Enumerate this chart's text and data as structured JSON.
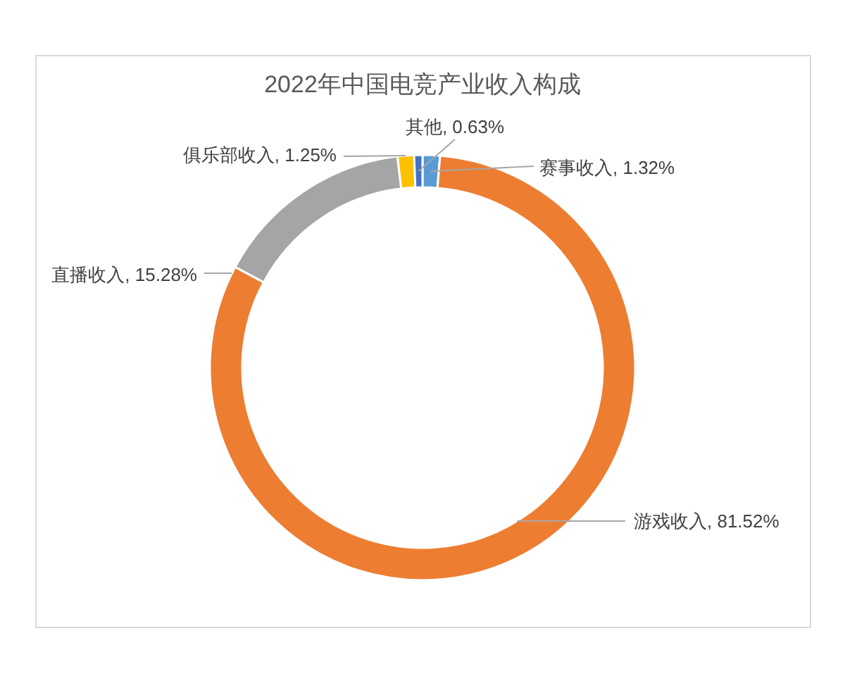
{
  "chart_data": {
    "type": "donut",
    "title": "2022年中国电竞产业收入构成",
    "categories": [
      "赛事收入",
      "游戏收入",
      "直播收入",
      "俱乐部收入",
      "其他"
    ],
    "values": [
      1.32,
      81.52,
      15.28,
      1.25,
      0.63
    ],
    "colors": [
      "#5b9bd5",
      "#ed7d31",
      "#a5a5a5",
      "#ffc000",
      "#4472c4"
    ],
    "value_labels": [
      "1.32%",
      "81.52%",
      "15.28%",
      "1.25%",
      "0.63%"
    ]
  }
}
